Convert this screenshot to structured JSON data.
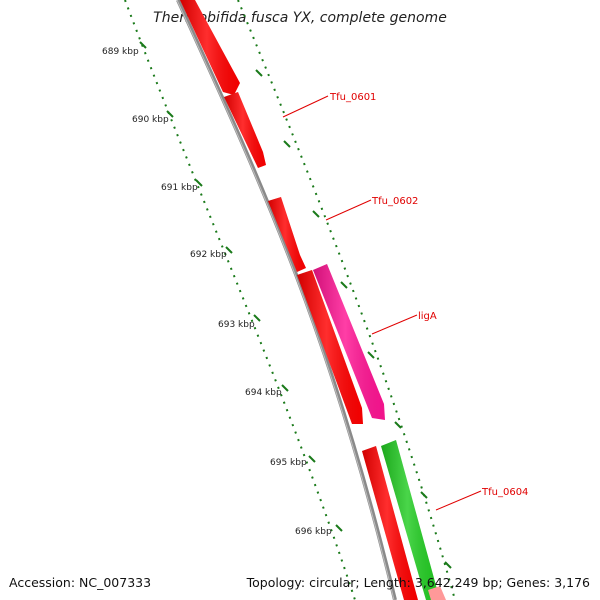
{
  "title": "Thermobifida fusca YX, complete genome",
  "footer": {
    "accession": "Accession: NC_007333",
    "topology": "Topology: circular; Length: 3,642,249 bp; Genes: 3,176"
  },
  "ticks": [
    "689 kbp",
    "690 kbp",
    "691 kbp",
    "692 kbp",
    "693 kbp",
    "694 kbp",
    "695 kbp",
    "696 kbp"
  ],
  "genes": [
    {
      "label": "",
      "color": "#ff0000",
      "strand": "inner"
    },
    {
      "label": "Tfu_0601",
      "color": "#ff0000",
      "strand": "inner"
    },
    {
      "label": "Tfu_0602",
      "color": "#ff0000",
      "strand": "inner"
    },
    {
      "label": "",
      "color": "#ff0000",
      "strand": "inner"
    },
    {
      "label": "ligA",
      "color": "#ff1493",
      "strand": "outer"
    },
    {
      "label": "",
      "color": "#ff0000",
      "strand": "inner"
    },
    {
      "label": "Tfu_0604",
      "color": "#22cc22",
      "strand": "outer"
    },
    {
      "label": "",
      "color": "#ff9999",
      "strand": "outer"
    }
  ],
  "colors": {
    "backbone": "#888888",
    "ruler": "#1a7a1a",
    "label": "#e00000"
  }
}
